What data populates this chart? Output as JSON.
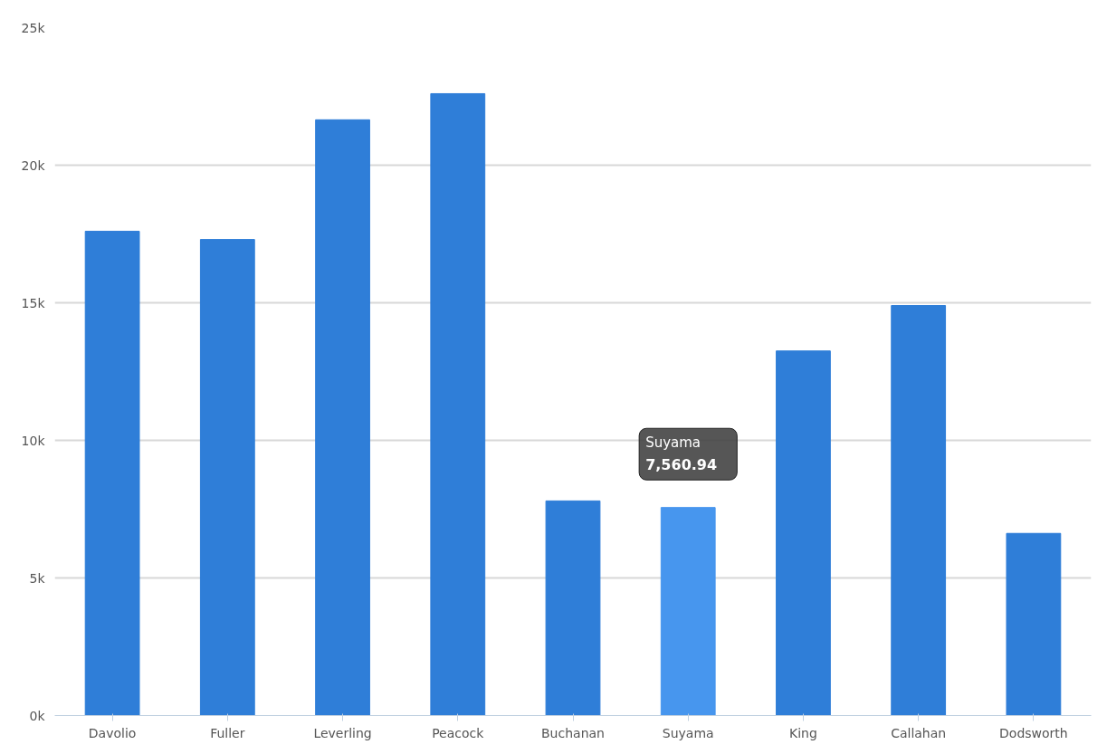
{
  "chart_data": {
    "type": "bar",
    "categories": [
      "Davolio",
      "Fuller",
      "Leverling",
      "Peacock",
      "Buchanan",
      "Suyama",
      "King",
      "Callahan",
      "Dodsworth"
    ],
    "values": [
      17600,
      17300,
      21650,
      22600,
      7800,
      7560.94,
      13250,
      14900,
      6620
    ],
    "colors": [
      "#2f7ed8",
      "#2f7ed8",
      "#2f7ed8",
      "#2f7ed8",
      "#2f7ed8",
      "#4796ee",
      "#2f7ed8",
      "#2f7ed8",
      "#2f7ed8"
    ],
    "value_labels": [
      null,
      null,
      null,
      null,
      null,
      "7,560.94",
      null,
      null,
      null
    ],
    "ylim": [
      0,
      25000
    ],
    "yticks": [
      {
        "value": 0,
        "label": "0k"
      },
      {
        "value": 5000,
        "label": "5k"
      },
      {
        "value": 10000,
        "label": "10k"
      },
      {
        "value": 15000,
        "label": "15k"
      },
      {
        "value": 20000,
        "label": "20k"
      },
      {
        "value": 25000,
        "label": "25k"
      }
    ],
    "grid": "y"
  }
}
